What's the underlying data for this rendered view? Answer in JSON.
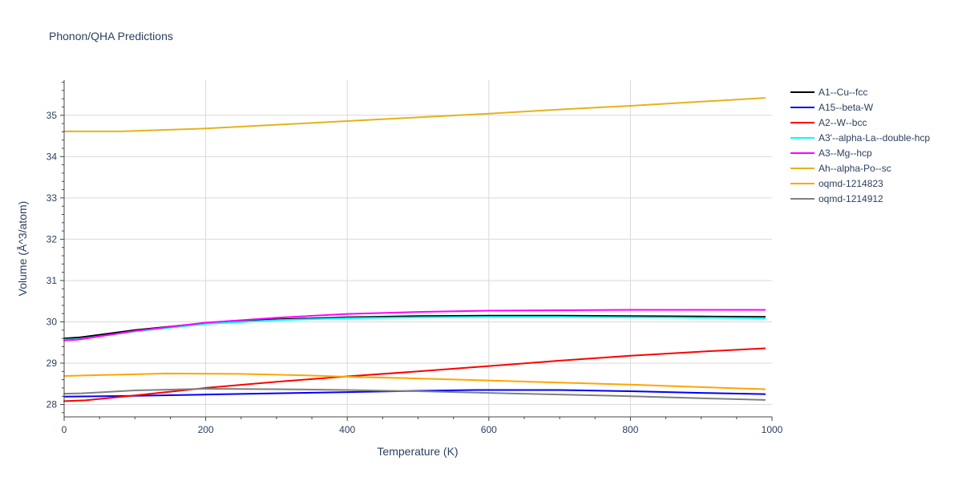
{
  "chart_data": {
    "type": "line",
    "title": "Phonon/QHA Predictions",
    "xlabel": "Temperature (K)",
    "ylabel": "Volume (Å^3/atom)",
    "xlim": [
      0,
      1000
    ],
    "ylim": [
      27.7,
      35.85
    ],
    "xticks": [
      0,
      200,
      400,
      600,
      800,
      1000
    ],
    "yticks": [
      28,
      29,
      30,
      31,
      32,
      33,
      34,
      35
    ],
    "grid": true,
    "legend_position": "top-right, outside plot",
    "series": [
      {
        "name": "A1--Cu--fcc",
        "color": "#000000",
        "x": [
          0,
          20,
          100,
          200,
          300,
          400,
          500,
          600,
          700,
          800,
          900,
          990
        ],
        "y": [
          29.6,
          29.62,
          29.8,
          29.97,
          30.06,
          30.11,
          30.14,
          30.15,
          30.15,
          30.14,
          30.13,
          30.12
        ]
      },
      {
        "name": "A15--beta-W",
        "color": "#0000ff",
        "x": [
          0,
          100,
          200,
          300,
          400,
          500,
          580,
          700,
          800,
          900,
          990
        ],
        "y": [
          28.19,
          28.21,
          28.24,
          28.27,
          28.3,
          28.33,
          28.35,
          28.35,
          28.32,
          28.28,
          28.25
        ]
      },
      {
        "name": "A2--W--bcc",
        "color": "#ff0000",
        "x": [
          0,
          30,
          100,
          200,
          300,
          400,
          500,
          600,
          700,
          800,
          900,
          990
        ],
        "y": [
          28.08,
          28.1,
          28.22,
          28.4,
          28.55,
          28.68,
          28.8,
          28.93,
          29.06,
          29.18,
          29.28,
          29.36
        ]
      },
      {
        "name": "A3'--alpha-La--double-hcp",
        "color": "#00ffff",
        "x": [
          0,
          20,
          100,
          200,
          300,
          400,
          500,
          600,
          700,
          800,
          900,
          990
        ],
        "y": [
          29.57,
          29.58,
          29.77,
          29.95,
          30.04,
          30.09,
          30.11,
          30.12,
          30.12,
          30.11,
          30.1,
          30.09
        ]
      },
      {
        "name": "A3--Mg--hcp",
        "color": "#ff00ff",
        "x": [
          0,
          20,
          100,
          200,
          300,
          400,
          500,
          600,
          700,
          800,
          900,
          990
        ],
        "y": [
          29.55,
          29.57,
          29.78,
          29.98,
          30.1,
          30.19,
          30.24,
          30.27,
          30.28,
          30.29,
          30.29,
          30.29
        ]
      },
      {
        "name": "Ah--alpha-Po--sc",
        "color": "#e6b21a",
        "x": [
          0,
          80,
          200,
          300,
          400,
          500,
          600,
          700,
          800,
          900,
          990
        ],
        "y": [
          34.61,
          34.61,
          34.68,
          34.77,
          34.86,
          34.95,
          35.04,
          35.14,
          35.23,
          35.33,
          35.42
        ]
      },
      {
        "name": "oqmd-1214823",
        "color": "#ffa500",
        "x": [
          0,
          70,
          145,
          250,
          350,
          400,
          500,
          600,
          700,
          800,
          900,
          990
        ],
        "y": [
          28.69,
          28.72,
          28.75,
          28.74,
          28.7,
          28.67,
          28.63,
          28.58,
          28.53,
          28.48,
          28.42,
          28.37
        ]
      },
      {
        "name": "oqmd-1214912",
        "color": "#808080",
        "x": [
          0,
          25,
          100,
          200,
          300,
          400,
          500,
          600,
          700,
          800,
          900,
          990
        ],
        "y": [
          28.26,
          28.27,
          28.34,
          28.38,
          28.37,
          28.35,
          28.32,
          28.28,
          28.24,
          28.2,
          28.15,
          28.11
        ]
      }
    ]
  }
}
